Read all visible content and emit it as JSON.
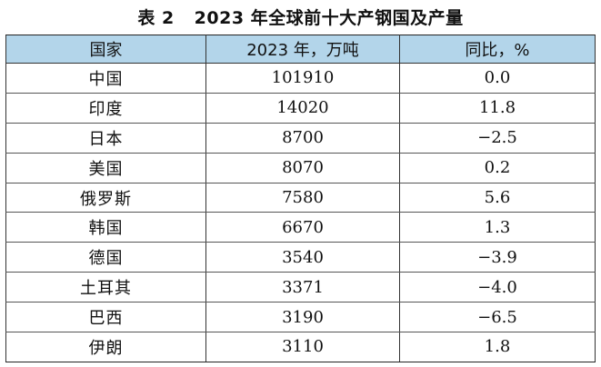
{
  "caption": {
    "label": "表 2",
    "title": "2023 年全球前十大产钢国及产量"
  },
  "table": {
    "headers": [
      "国家",
      "2023 年，万吨",
      "同比，%"
    ],
    "rows": [
      {
        "country": "中国",
        "output": "101910",
        "yoy": "0.0"
      },
      {
        "country": "印度",
        "output": "14020",
        "yoy": "11.8"
      },
      {
        "country": "日本",
        "output": "8700",
        "yoy": "−2.5"
      },
      {
        "country": "美国",
        "output": "8070",
        "yoy": "0.2"
      },
      {
        "country": "俄罗斯",
        "output": "7580",
        "yoy": "5.6"
      },
      {
        "country": "韩国",
        "output": "6670",
        "yoy": "1.3"
      },
      {
        "country": "德国",
        "output": "3540",
        "yoy": "−3.9"
      },
      {
        "country": "土耳其",
        "output": "3371",
        "yoy": "−4.0"
      },
      {
        "country": "巴西",
        "output": "3190",
        "yoy": "−6.5"
      },
      {
        "country": "伊朗",
        "output": "3110",
        "yoy": "1.8"
      }
    ]
  },
  "colors": {
    "header_background": "#b3d5ea",
    "rule": "#333333",
    "text": "#111111"
  }
}
